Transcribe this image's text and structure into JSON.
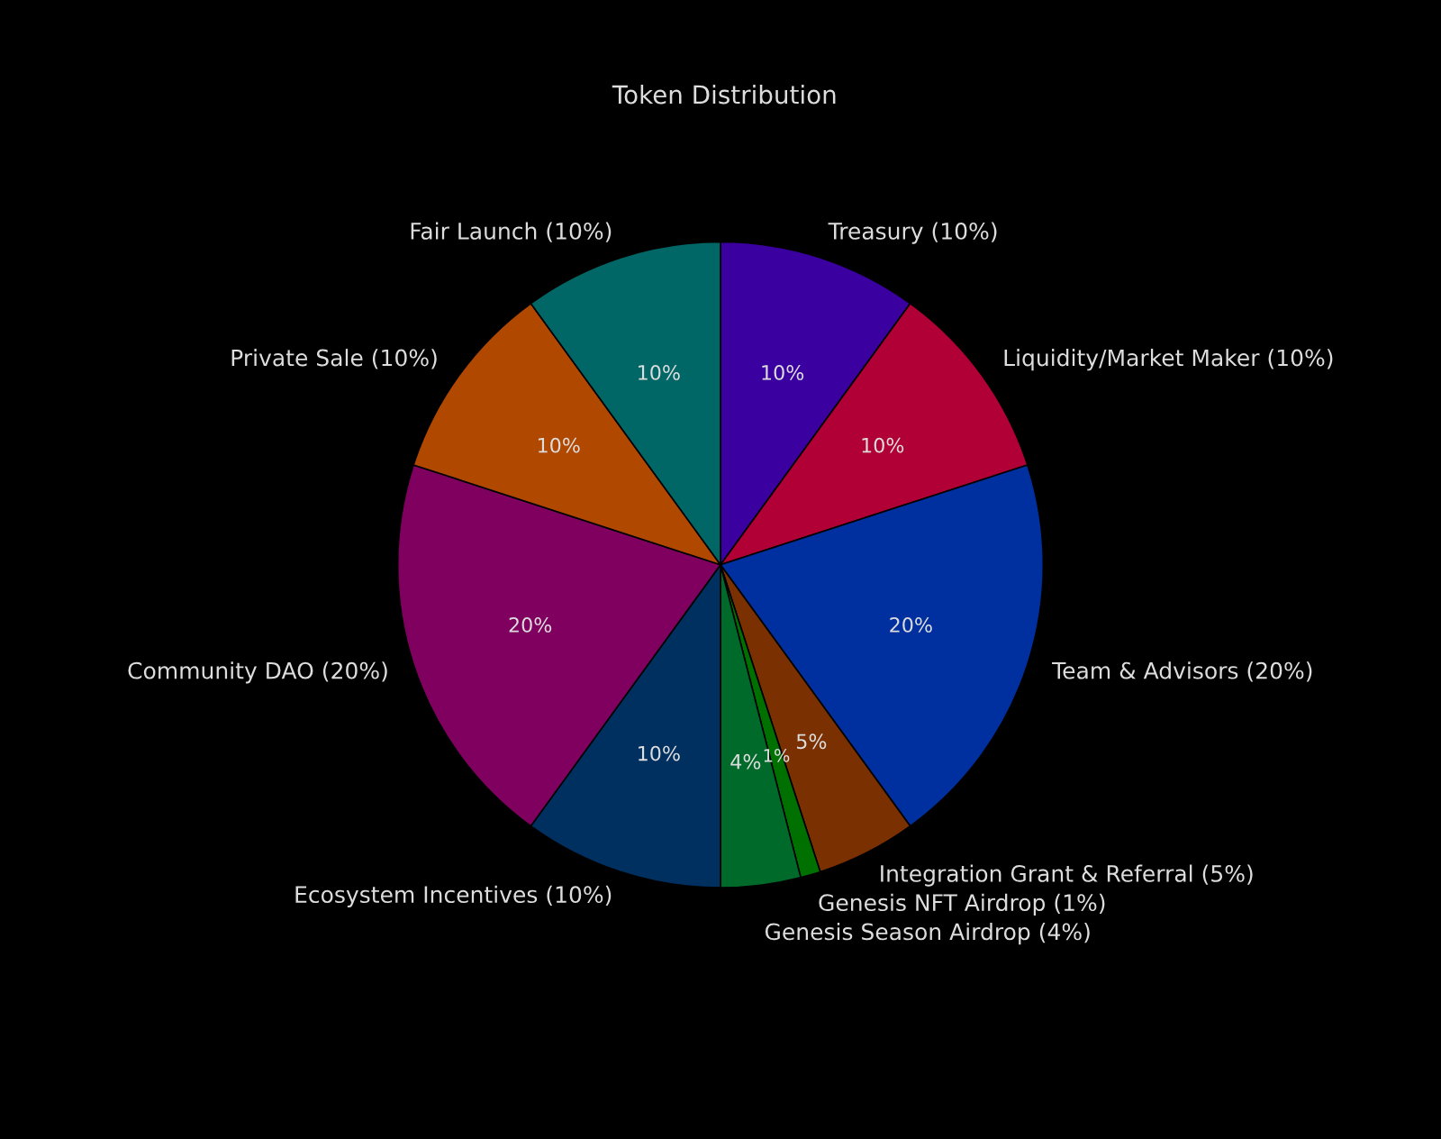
{
  "chart_data": {
    "type": "pie",
    "title": "Token Distribution",
    "categories": [
      "Treasury (10%)",
      "Liquidity/Market Maker (10%)",
      "Team & Advisors (20%)",
      "Integration Grant & Referral (5%)",
      "Genesis NFT Airdrop (1%)",
      "Genesis Season Airdrop (4%)",
      "Ecosystem Incentives (10%)",
      "Community DAO (20%)",
      "Private Sale (10%)",
      "Fair Launch (10%)"
    ],
    "values": [
      10,
      10,
      20,
      5,
      1,
      4,
      10,
      20,
      10,
      10
    ],
    "colors": [
      "#3a00a0",
      "#b00035",
      "#0030a0",
      "#7a3000",
      "#007000",
      "#006a2a",
      "#003060",
      "#800060",
      "#b04800",
      "#006666"
    ],
    "value_labels": [
      "10%",
      "10%",
      "20%",
      "5%",
      "1%",
      "4%",
      "10%",
      "20%",
      "10%",
      "10%"
    ]
  }
}
